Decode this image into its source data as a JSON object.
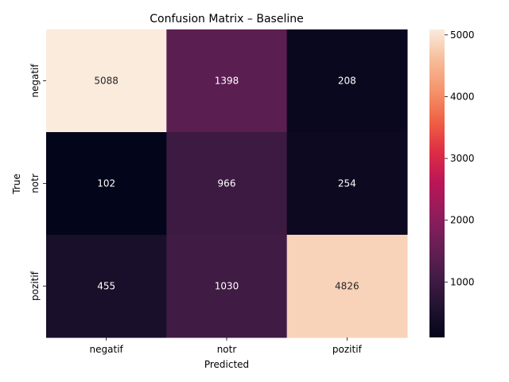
{
  "chart_data": {
    "type": "heatmap",
    "title": "Confusion Matrix – Baseline",
    "xlabel": "Predicted",
    "ylabel": "True",
    "x_categories": [
      "negatif",
      "notr",
      "pozitif"
    ],
    "y_categories": [
      "negatif",
      "notr",
      "pozitif"
    ],
    "values": [
      [
        5088,
        1398,
        208
      ],
      [
        102,
        966,
        254
      ],
      [
        455,
        1030,
        4826
      ]
    ],
    "colorbar": {
      "min": 102,
      "max": 5088,
      "ticks": [
        "1000",
        "2000",
        "3000",
        "4000",
        "5000"
      ],
      "tick_values": [
        1000,
        2000,
        3000,
        4000,
        5000
      ]
    },
    "colormap": "rocket",
    "annotation_light_text": "#ffffff",
    "annotation_dark_text": "#262626"
  }
}
